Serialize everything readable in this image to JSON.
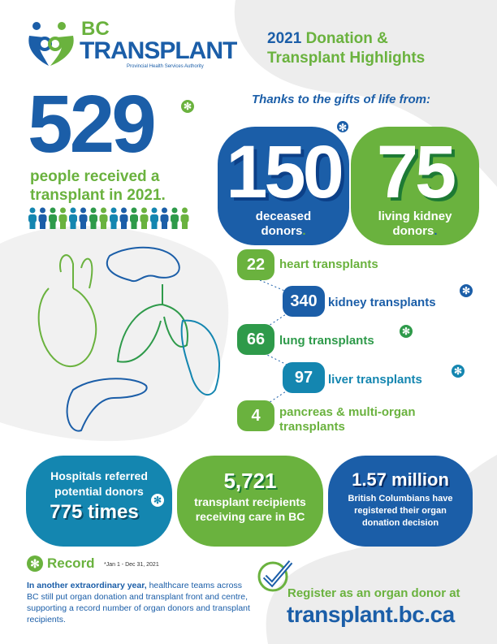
{
  "logo": {
    "line1": "BC",
    "line2": "TRANSPLANT",
    "subtitle": "Provincial Health Services Authority"
  },
  "title": {
    "year": "2021",
    "line1_rest": "Donation &",
    "line2": "Transplant Highlights"
  },
  "headline": {
    "number": "529",
    "line1": "people received a",
    "line2": "transplant in 2021."
  },
  "thanks": "Thanks to the gifts of life from:",
  "donors": [
    {
      "number": "150",
      "line1": "deceased",
      "line2": "donors"
    },
    {
      "number": "75",
      "line1": "living kidney",
      "line2": "donors"
    }
  ],
  "organs": [
    {
      "count": "22",
      "label": "heart transplants",
      "color": "#6ab23e"
    },
    {
      "count": "340",
      "label": "kidney transplants",
      "color": "#1b5ea8"
    },
    {
      "count": "66",
      "label": "lung transplants",
      "color": "#2e9a4a"
    },
    {
      "count": "97",
      "label": "liver transplants",
      "color": "#1486b0"
    },
    {
      "count": "4",
      "label": "pancreas & multi-organ",
      "label2": "transplants",
      "color": "#6ab23e"
    }
  ],
  "stats": [
    {
      "line1": "Hospitals referred",
      "line2": "potential donors",
      "number": "775 times"
    },
    {
      "number": "5,721",
      "line1": "transplant recipients",
      "line2": "receiving care in BC"
    },
    {
      "number": "1.57 million",
      "line1": "British Columbians have",
      "line2": "registered their organ",
      "line3": "donation decision"
    }
  ],
  "record": {
    "label": "Record",
    "note": "*Jan 1 - Dec 31, 2021",
    "lead": "In another extraordinary year,",
    "body": " healthcare teams across BC still put organ donation and transplant front and centre, supporting a record number of organ donors and transplant recipients."
  },
  "register": {
    "line1": "Register as an organ donor at",
    "url": "transplant.bc.ca"
  },
  "colors": {
    "blue": "#1b5ea8",
    "green": "#6ab23e",
    "teal": "#1486b0",
    "dark_green": "#2e9a4a",
    "gray": "#ededed"
  }
}
